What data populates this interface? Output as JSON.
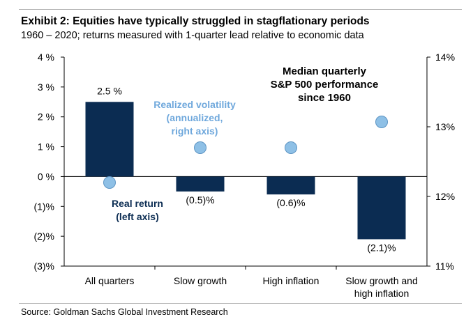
{
  "header": {
    "title": "Exhibit 2: Equities have typically struggled in stagflationary periods",
    "subtitle": "1960 – 2020; returns measured with 1-quarter lead relative to economic data"
  },
  "footer": {
    "source": "Source: Goldman Sachs Global Investment Research"
  },
  "colors": {
    "bar": "#0b2c52",
    "marker": "#8ec0e6",
    "marker_stroke": "#5e95c4",
    "volatility_label": "#6fa8dc",
    "real_return_label": "#0b2c52"
  },
  "chart_data": {
    "type": "bar",
    "title": "Median quarterly S&P 500 performance since 1960",
    "title_lines": [
      "Median quarterly",
      "S&P 500 performance",
      "since 1960"
    ],
    "categories": [
      [
        "All quarters"
      ],
      [
        "Slow growth"
      ],
      [
        "High inflation"
      ],
      [
        "Slow growth and",
        "high inflation"
      ]
    ],
    "series": [
      {
        "name": "Real return (left axis)",
        "axis": "left",
        "values": [
          2.5,
          -0.5,
          -0.6,
          -2.1
        ],
        "labels": [
          "2.5 %",
          "(0.5)%",
          "(0.6)%",
          "(2.1)%"
        ]
      },
      {
        "name": "Realized volatility (annualized, right axis)",
        "axis": "right",
        "values": [
          12.2,
          12.7,
          12.7,
          13.07
        ]
      }
    ],
    "annotations": {
      "real_return": [
        "Real return",
        "(left axis)"
      ],
      "volatility": [
        "Realized volatility",
        "(annualized,",
        "right axis)"
      ]
    },
    "left_axis": {
      "ylim": [
        -3,
        4
      ],
      "ticks": [
        4,
        3,
        2,
        1,
        0,
        -1,
        -2,
        -3
      ],
      "tick_labels": [
        "4 %",
        "3 %",
        "2 %",
        "1 %",
        "0 %",
        "(1)%",
        "(2)%",
        "(3)%"
      ]
    },
    "right_axis": {
      "ylim": [
        11,
        14
      ],
      "ticks": [
        14,
        13,
        12,
        11
      ],
      "tick_labels": [
        "14%",
        "13%",
        "12%",
        "11%"
      ]
    },
    "grid": false
  }
}
